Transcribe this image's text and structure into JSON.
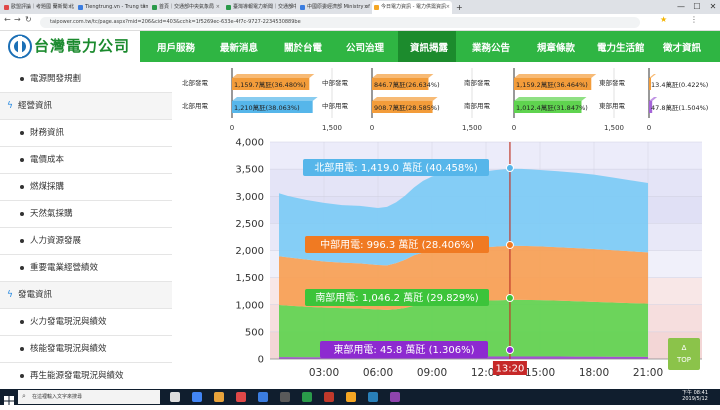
{
  "browser": {
    "tabs": [
      {
        "label": "歐盟評論｜考題國 蘭新聞 北部..."
      },
      {
        "label": "Tiengtrung.vn - Trung tâm tiếng..."
      },
      {
        "label": "首頁｜交通部中央氣象局"
      },
      {
        "label": "臺灣導報電力新聞｜交通部中央..."
      },
      {
        "label": "中國原委經濟部 Ministry of Eco..."
      },
      {
        "label": "今日電力資訊 - 電力供需資訊"
      }
    ],
    "url": "taipower.com.tw/tc/page.aspx?mid=206&cid=403&cchk=1f5269ec-633e-4f7c-9727-2234530889be",
    "win_controls": [
      "—",
      "☐",
      "✕"
    ]
  },
  "site": {
    "logo_text": "台灣電力公司",
    "nav": [
      "用戶服務",
      "最新消息",
      "關於台電",
      "公司治理",
      "資訊揭露",
      "業務公告",
      "規章條款",
      "電力生活館",
      "徵才資訊"
    ],
    "nav_active_index": 4
  },
  "sidebar": {
    "items": [
      {
        "type": "item",
        "label": "電源開發規劃"
      },
      {
        "type": "head",
        "label": "經營資訊"
      },
      {
        "type": "item",
        "label": "財務資訊"
      },
      {
        "type": "item",
        "label": "電價成本"
      },
      {
        "type": "item",
        "label": "燃煤採購"
      },
      {
        "type": "item",
        "label": "天然氣採購"
      },
      {
        "type": "item",
        "label": "人力資源發展"
      },
      {
        "type": "item",
        "label": "重要電業經營績效"
      },
      {
        "type": "head",
        "label": "發電資訊"
      },
      {
        "type": "item",
        "label": "火力發電現況與績效"
      },
      {
        "type": "item",
        "label": "核能發電現況與績效"
      },
      {
        "type": "item",
        "label": "再生能源發電現況與績效"
      }
    ]
  },
  "chart_data": [
    {
      "type": "bar",
      "orientation": "horizontal",
      "group": "北部",
      "series": [
        {
          "name": "北部發電",
          "value": 1159.7,
          "label": "1,159.7萬瓩(36.480%)",
          "color": "#f39c3a"
        },
        {
          "name": "北部用電",
          "value": 1210,
          "label": "1,210萬瓩(38.063%)",
          "color": "#56b6ea"
        }
      ],
      "xticks": [
        "0",
        "1,500"
      ],
      "xlim": [
        0,
        1500
      ]
    },
    {
      "type": "bar",
      "orientation": "horizontal",
      "group": "中部",
      "series": [
        {
          "name": "中部發電",
          "value": 846.7,
          "label": "846.7萬瓩(26.634%)",
          "color": "#f39c3a"
        },
        {
          "name": "中部用電",
          "value": 908.7,
          "label": "908.7萬瓩(28.585%)",
          "color": "#f39c3a"
        }
      ],
      "xticks": [
        "0",
        "1,500"
      ],
      "xlim": [
        0,
        1500
      ]
    },
    {
      "type": "bar",
      "orientation": "horizontal",
      "group": "南部",
      "series": [
        {
          "name": "南部發電",
          "value": 1159.2,
          "label": "1,159.2萬瓩(36.464%)",
          "color": "#f39c3a"
        },
        {
          "name": "南部用電",
          "value": 1012.4,
          "label": "1,012.4萬瓩(31.847%)",
          "color": "#5fd34f"
        }
      ],
      "xticks": [
        "0",
        "1,500"
      ],
      "xlim": [
        0,
        1500
      ]
    },
    {
      "type": "bar",
      "orientation": "horizontal",
      "group": "東部",
      "series": [
        {
          "name": "東部發電",
          "value": 13.4,
          "label": "13.4萬瓩(0.422%)",
          "color": "#f39c3a"
        },
        {
          "name": "東部用電",
          "value": 47.8,
          "label": "47.8萬瓩(1.504%)",
          "color": "#a565d8"
        }
      ],
      "xticks": [
        "0",
        "1,500"
      ],
      "xlim": [
        0,
        1500
      ]
    },
    {
      "type": "area",
      "stacked": true,
      "ylim": [
        0,
        4000
      ],
      "yticks": [
        "0",
        "500",
        "1,000",
        "1,500",
        "2,000",
        "2,500",
        "3,000",
        "3,500",
        "4,000"
      ],
      "xlim": [
        0,
        24
      ],
      "xticks": [
        {
          "value": 3,
          "label": "03:00"
        },
        {
          "value": 6,
          "label": "06:00"
        },
        {
          "value": 9,
          "label": "09:00"
        },
        {
          "value": 12,
          "label": "12:00"
        },
        {
          "value": 15,
          "label": "15:00"
        },
        {
          "value": 18,
          "label": "18:00"
        },
        {
          "value": 21,
          "label": "21:00"
        }
      ],
      "cursor": {
        "x": 13.33,
        "label": "13:20"
      },
      "x": [
        0.5,
        1,
        2,
        3,
        4,
        5,
        6,
        6.5,
        7,
        7.5,
        8,
        8.5,
        9,
        9.5,
        10,
        10.5,
        11,
        11.5,
        12,
        12.5,
        13,
        13.33,
        14,
        15,
        16,
        17,
        18,
        19,
        20,
        21
      ],
      "series": [
        {
          "name": "東部用電",
          "color": "#a040d8",
          "values": [
            35,
            34,
            33,
            32,
            32,
            32,
            33,
            35,
            38,
            40,
            42,
            43,
            44,
            45,
            45,
            45,
            46,
            46,
            46,
            46,
            46,
            45.8,
            45,
            45,
            45,
            44,
            43,
            42,
            41,
            40
          ]
        },
        {
          "name": "南部用電",
          "color": "#5fd34f",
          "values": [
            960,
            950,
            930,
            915,
            905,
            900,
            880,
            870,
            880,
            900,
            940,
            970,
            990,
            1000,
            1010,
            1020,
            1030,
            1035,
            1030,
            1035,
            1040,
            1046.2,
            1045,
            1040,
            1030,
            1020,
            1010,
            1000,
            990,
            980
          ]
        },
        {
          "name": "中部用電",
          "color": "#f7a054",
          "values": [
            900,
            890,
            870,
            850,
            840,
            830,
            820,
            820,
            850,
            890,
            930,
            950,
            960,
            970,
            980,
            985,
            990,
            990,
            985,
            990,
            995,
            996.3,
            995,
            990,
            985,
            980,
            975,
            965,
            955,
            945
          ]
        },
        {
          "name": "北部用電",
          "color": "#7ccbf5",
          "values": [
            1160,
            1130,
            1100,
            1080,
            1060,
            1060,
            1050,
            1080,
            1120,
            1180,
            1250,
            1320,
            1370,
            1395,
            1400,
            1405,
            1410,
            1410,
            1400,
            1410,
            1415,
            1419.0,
            1420,
            1410,
            1400,
            1390,
            1370,
            1340,
            1310,
            1280
          ]
        }
      ],
      "annotations": [
        {
          "series": "北部用電",
          "label": "北部用電: 1,419.0 萬瓩 (40.458%)",
          "bg": "#56b6ea"
        },
        {
          "series": "中部用電",
          "label": "中部用電: 996.3 萬瓩 (28.406%)",
          "bg": "#f07a22"
        },
        {
          "series": "南部用電",
          "label": "南部用電: 1,046.2 萬瓩 (29.829%)",
          "bg": "#3cc43a"
        },
        {
          "series": "東部用電",
          "label": "東部用電: 45.8 萬瓩 (1.306%)",
          "bg": "#8d2ad0"
        }
      ]
    }
  ],
  "back_to_top": {
    "arrow": "∆",
    "label": "TOP"
  },
  "taskbar": {
    "search_placeholder": "在這裡輸入文字來搜尋",
    "time": "下午 08:41",
    "date": "2019/5/12"
  }
}
